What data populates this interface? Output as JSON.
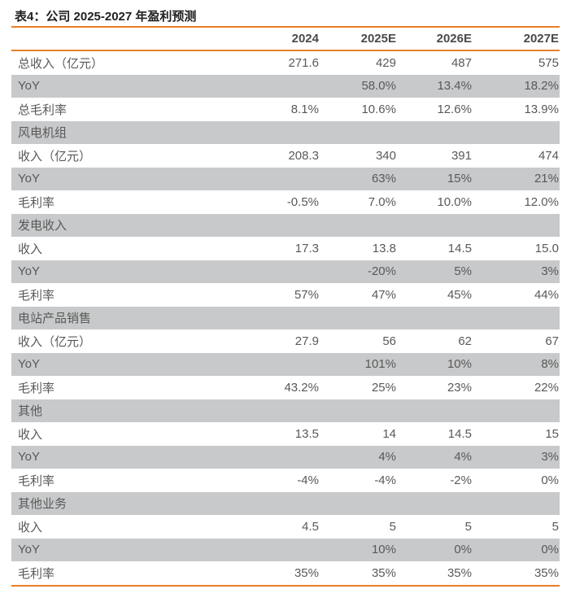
{
  "title": "表4：公司 2025-2027 年盈利预测",
  "colors": {
    "accent": "#E87E26",
    "row_stripe": "#C8C9CA",
    "text_body": "#595959",
    "text_header": "#4A4A4A",
    "text_title": "#1F1F1F"
  },
  "table": {
    "columns": [
      "",
      "2024",
      "2025E",
      "2026E",
      "2027E"
    ],
    "rows": [
      {
        "label": "总收入（亿元）",
        "values": [
          "271.6",
          "429",
          "487",
          "575"
        ]
      },
      {
        "label": "YoY",
        "values": [
          "",
          "58.0%",
          "13.4%",
          "18.2%"
        ]
      },
      {
        "label": "总毛利率",
        "values": [
          "8.1%",
          "10.6%",
          "12.6%",
          "13.9%"
        ]
      },
      {
        "label": "风电机组",
        "section": true
      },
      {
        "label": "收入（亿元）",
        "values": [
          "208.3",
          "340",
          "391",
          "474"
        ]
      },
      {
        "label": "YoY",
        "values": [
          "",
          "63%",
          "15%",
          "21%"
        ]
      },
      {
        "label": "毛利率",
        "values": [
          "-0.5%",
          "7.0%",
          "10.0%",
          "12.0%"
        ]
      },
      {
        "label": "发电收入",
        "section": true
      },
      {
        "label": "收入",
        "values": [
          "17.3",
          "13.8",
          "14.5",
          "15.0"
        ]
      },
      {
        "label": "YoY",
        "values": [
          "",
          "-20%",
          "5%",
          "3%"
        ]
      },
      {
        "label": "毛利率",
        "values": [
          "57%",
          "47%",
          "45%",
          "44%"
        ]
      },
      {
        "label": "电站产品销售",
        "section": true
      },
      {
        "label": "收入（亿元）",
        "values": [
          "27.9",
          "56",
          "62",
          "67"
        ]
      },
      {
        "label": "YoY",
        "values": [
          "",
          "101%",
          "10%",
          "8%"
        ]
      },
      {
        "label": "毛利率",
        "values": [
          "43.2%",
          "25%",
          "23%",
          "22%"
        ]
      },
      {
        "label": "其他",
        "section": true
      },
      {
        "label": "收入",
        "values": [
          "13.5",
          "14",
          "14.5",
          "15"
        ]
      },
      {
        "label": "YoY",
        "values": [
          "",
          "4%",
          "4%",
          "3%"
        ]
      },
      {
        "label": "毛利率",
        "values": [
          "-4%",
          "-4%",
          "-2%",
          "0%"
        ]
      },
      {
        "label": "其他业务",
        "section": true
      },
      {
        "label": "收入",
        "values": [
          "4.5",
          "5",
          "5",
          "5"
        ]
      },
      {
        "label": "YoY",
        "values": [
          "",
          "10%",
          "0%",
          "0%"
        ]
      },
      {
        "label": "毛利率",
        "values": [
          "35%",
          "35%",
          "35%",
          "35%"
        ]
      }
    ]
  }
}
